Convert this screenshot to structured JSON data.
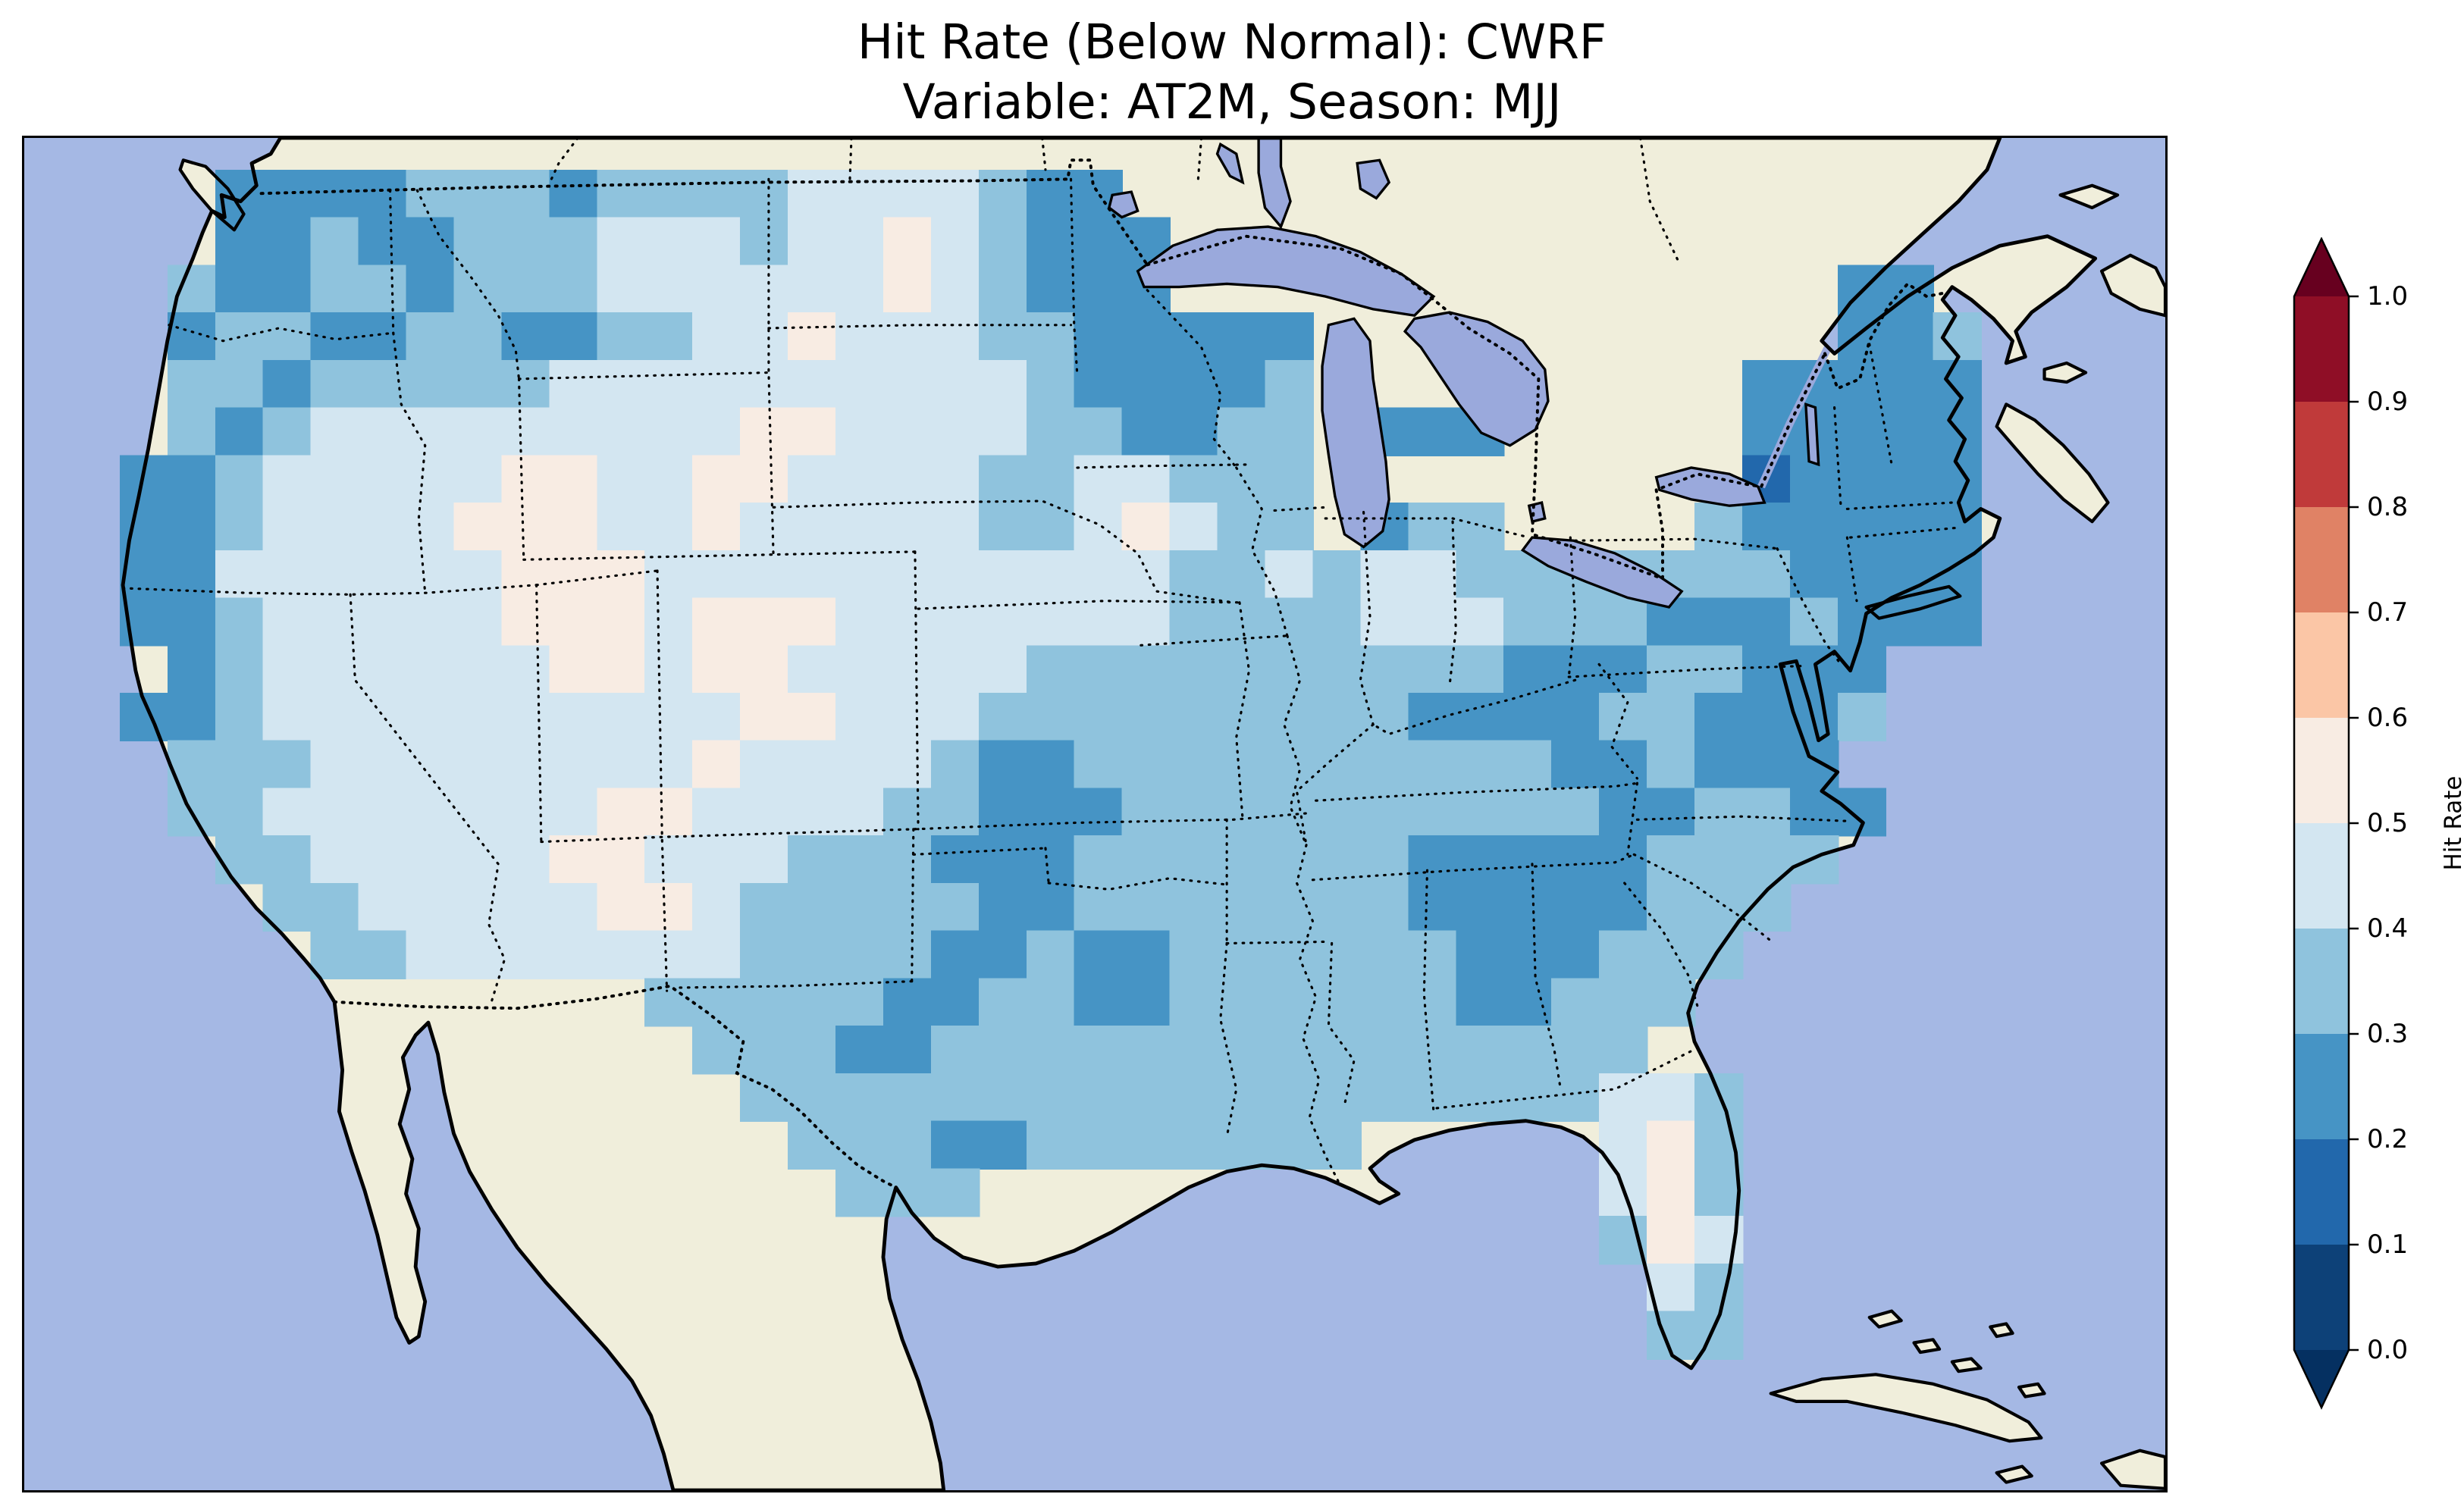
{
  "figure": {
    "title_line1": "Hit Rate (Below Normal): CWRF",
    "title_line2": "Variable: AT2M, Season: MJJ"
  },
  "chart_data": {
    "type": "heatmap",
    "title": "Hit Rate (Below Normal): CWRF",
    "subtitle": "Variable: AT2M, Season: MJJ",
    "metric": "Hit Rate (Below Normal)",
    "model": "CWRF",
    "variable": "AT2M",
    "season": "MJJ",
    "region": "Contiguous United States with surrounding Canada, Mexico, Gulf of Mexico and Atlantic",
    "legend_position": "right",
    "colorbar": {
      "label": "Hit Rate",
      "ticks_top_to_bottom": [
        "1.0",
        "0.9",
        "0.8",
        "0.7",
        "0.6",
        "0.5",
        "0.4",
        "0.3",
        "0.2",
        "0.1",
        "0.0"
      ],
      "range": [
        0.0,
        1.0
      ],
      "bin_width": 0.1,
      "bin_colors_low_to_high": [
        "#0d4178",
        "#2268ac",
        "#4694c5",
        "#8fc3dd",
        "#d3e6f1",
        "#f8ece3",
        "#fbc6a6",
        "#e08265",
        "#c03a3a",
        "#8f0e26"
      ],
      "extend_under_color": "#053061",
      "extend_over_color": "#67001f",
      "outline_color": "#000000"
    },
    "map_colors": {
      "ocean": "#a5b8e4",
      "land": "#f0eedb",
      "lake": "#9aa9dc",
      "coastline": "#000000",
      "border_style": "dotted"
    },
    "grid": {
      "note": "Approximate hit-rate field over CONUS read from the figure. Each character is one grid cell; digit d means value bin (d*0.1) to (d*0.1+0.1), '.' means no data (outside CONUS).",
      "cell_bins": {
        "1": "0.1-0.2",
        "2": "0.2-0.3",
        "3": "0.3-0.4",
        "4": "0.4-0.5",
        "5": "0.5-0.6",
        ".": "no data"
      },
      "cols": 39,
      "rows_count": 25,
      "rows": [
        "..2222333233334444322..................",
        "..22322333444344543222.................",
        ".322332333444444543222..............22.",
        ".233223322334454443322222...........223",
        ".332333334444444444322223.........22222",
        ".323444444444554444332233.222.....22222",
        "2234444455445544443344333.........12222",
        "2234444555445444443345433.233....322222",
        "224444445554444444444433434433333332222",
        "223444445554555444444433334443332223222",
        ".234444445545544444333333333322233222..",
        "2234444444444554443333333332222332223..",
        ".33344444444544443223333333333223222...",
        ".334444444554444332223333333333223322..",
        "..3344444554443332223333333222223333...",
        "...33444445543333322333333322222333....",
        "....334444444333322322333333222333.....",
        "...........3333322332233333322333......",
        "............33322333333333333333.......",
        ".............333333333333333333443.....",
        "..............333223333333.....453.....",
        "...............333.............453.....",
        "...............................354.....",
        "................................43.....",
        "................................33....."
      ]
    },
    "observations": "Hit rates over most of CONUS fall between 0.2 and 0.5; darker blue (0.2-0.3) patches over the Pacific Northwest, upper Midwest/Great Lakes, Northeast, Appalachia, Georgia/South Carolina, Oklahoma and central Texas; near-white (0.5-0.6) patches over Utah/Colorado, the Dakotas, New Mexico and central Florida; one 0.1-0.2 cell in central New York."
  }
}
